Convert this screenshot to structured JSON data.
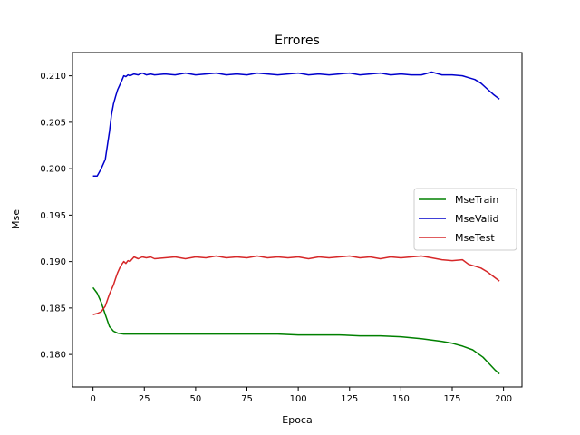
{
  "chart_data": {
    "type": "line",
    "title": "Errores",
    "xlabel": "Epoca",
    "ylabel": "Mse",
    "xlim": [
      -10,
      209
    ],
    "ylim": [
      0.1765,
      0.2125
    ],
    "xticks": [
      0,
      25,
      50,
      75,
      100,
      125,
      150,
      175,
      200
    ],
    "xtick_labels": [
      "0",
      "25",
      "50",
      "75",
      "100",
      "125",
      "150",
      "175",
      "200"
    ],
    "yticks": [
      0.18,
      0.185,
      0.19,
      0.195,
      0.2,
      0.205,
      0.21
    ],
    "ytick_labels": [
      "0.180",
      "0.185",
      "0.190",
      "0.195",
      "0.200",
      "0.205",
      "0.210"
    ],
    "grid": false,
    "legend_position": "center-right",
    "series": [
      {
        "name": "MseTrain",
        "color": "#008000",
        "x": [
          0,
          2,
          4,
          6,
          8,
          10,
          12,
          15,
          20,
          25,
          30,
          40,
          50,
          60,
          70,
          80,
          90,
          100,
          110,
          120,
          130,
          140,
          150,
          160,
          170,
          175,
          180,
          185,
          190,
          193,
          196,
          198
        ],
        "y": [
          0.1872,
          0.1866,
          0.1856,
          0.1843,
          0.183,
          0.1825,
          0.1823,
          0.1822,
          0.1822,
          0.1822,
          0.1822,
          0.1822,
          0.1822,
          0.1822,
          0.1822,
          0.1822,
          0.1822,
          0.1821,
          0.1821,
          0.1821,
          0.182,
          0.182,
          0.1819,
          0.1817,
          0.1814,
          0.1812,
          0.1809,
          0.1805,
          0.1797,
          0.179,
          0.1783,
          0.1779
        ]
      },
      {
        "name": "MseValid",
        "color": "#0000cc",
        "x": [
          0,
          2,
          4,
          6,
          7,
          8,
          9,
          10,
          11,
          12,
          13,
          14,
          15,
          16,
          17,
          18,
          20,
          22,
          24,
          26,
          28,
          30,
          35,
          40,
          45,
          50,
          55,
          60,
          65,
          70,
          75,
          80,
          85,
          90,
          95,
          100,
          105,
          110,
          115,
          120,
          125,
          130,
          135,
          140,
          145,
          150,
          155,
          160,
          165,
          170,
          175,
          180,
          183,
          186,
          189,
          192,
          195,
          198
        ],
        "y": [
          0.1992,
          0.1992,
          0.2,
          0.201,
          0.2025,
          0.204,
          0.2058,
          0.207,
          0.2078,
          0.2085,
          0.209,
          0.2095,
          0.21,
          0.2099,
          0.2101,
          0.21,
          0.2102,
          0.2101,
          0.2103,
          0.2101,
          0.2102,
          0.2101,
          0.2102,
          0.2101,
          0.2103,
          0.2101,
          0.2102,
          0.2103,
          0.2101,
          0.2102,
          0.2101,
          0.2103,
          0.2102,
          0.2101,
          0.2102,
          0.2103,
          0.2101,
          0.2102,
          0.2101,
          0.2102,
          0.2103,
          0.2101,
          0.2102,
          0.2103,
          0.2101,
          0.2102,
          0.2101,
          0.2101,
          0.2104,
          0.2101,
          0.2101,
          0.21,
          0.2098,
          0.2096,
          0.2092,
          0.2086,
          0.208,
          0.2075
        ]
      },
      {
        "name": "MseTest",
        "color": "#d62728",
        "x": [
          0,
          2,
          4,
          6,
          8,
          9,
          10,
          11,
          12,
          13,
          14,
          15,
          16,
          17,
          18,
          20,
          22,
          24,
          26,
          28,
          30,
          35,
          40,
          45,
          50,
          55,
          60,
          65,
          70,
          75,
          80,
          85,
          90,
          95,
          100,
          105,
          110,
          115,
          120,
          125,
          130,
          135,
          140,
          145,
          150,
          155,
          160,
          165,
          170,
          175,
          180,
          183,
          186,
          189,
          192,
          195,
          198
        ],
        "y": [
          0.1843,
          0.1844,
          0.1846,
          0.1852,
          0.1865,
          0.187,
          0.1875,
          0.1882,
          0.1888,
          0.1893,
          0.1897,
          0.19,
          0.1898,
          0.1901,
          0.19,
          0.1905,
          0.1903,
          0.1905,
          0.1904,
          0.1905,
          0.1903,
          0.1904,
          0.1905,
          0.1903,
          0.1905,
          0.1904,
          0.1906,
          0.1904,
          0.1905,
          0.1904,
          0.1906,
          0.1904,
          0.1905,
          0.1904,
          0.1905,
          0.1903,
          0.1905,
          0.1904,
          0.1905,
          0.1906,
          0.1904,
          0.1905,
          0.1903,
          0.1905,
          0.1904,
          0.1905,
          0.1906,
          0.1904,
          0.1902,
          0.1901,
          0.1902,
          0.1897,
          0.1895,
          0.1893,
          0.1889,
          0.1884,
          0.1879
        ]
      }
    ]
  }
}
